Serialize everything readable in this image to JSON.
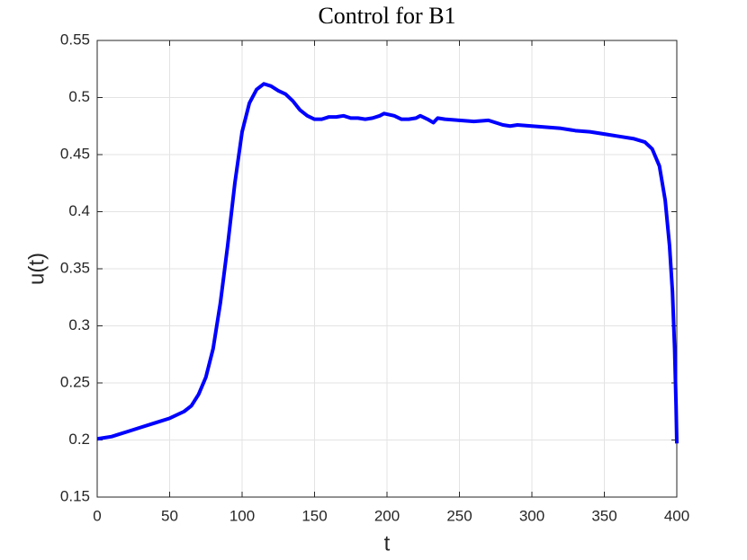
{
  "chart_data": {
    "type": "line",
    "title": "Control for B1",
    "x_label": "t",
    "y_label": "u(t)",
    "x": [
      0,
      10,
      20,
      30,
      40,
      50,
      60,
      65,
      70,
      75,
      80,
      85,
      90,
      95,
      100,
      105,
      110,
      115,
      120,
      125,
      130,
      135,
      140,
      145,
      150,
      155,
      160,
      165,
      170,
      175,
      180,
      185,
      190,
      195,
      198,
      205,
      210,
      215,
      220,
      223,
      228,
      232,
      235,
      240,
      250,
      260,
      270,
      280,
      285,
      290,
      300,
      310,
      320,
      330,
      340,
      350,
      360,
      370,
      378,
      383,
      388,
      392,
      395,
      397,
      398.5,
      399.5,
      400
    ],
    "series": [
      {
        "color": "#0000ff",
        "values": [
          0.201,
          0.203,
          0.207,
          0.211,
          0.215,
          0.219,
          0.225,
          0.23,
          0.24,
          0.255,
          0.28,
          0.32,
          0.37,
          0.425,
          0.47,
          0.495,
          0.507,
          0.512,
          0.51,
          0.506,
          0.503,
          0.497,
          0.489,
          0.484,
          0.481,
          0.481,
          0.483,
          0.483,
          0.484,
          0.482,
          0.482,
          0.481,
          0.482,
          0.484,
          0.486,
          0.484,
          0.481,
          0.481,
          0.482,
          0.484,
          0.481,
          0.478,
          0.482,
          0.481,
          0.48,
          0.479,
          0.48,
          0.476,
          0.475,
          0.476,
          0.475,
          0.474,
          0.473,
          0.471,
          0.47,
          0.468,
          0.466,
          0.464,
          0.461,
          0.455,
          0.44,
          0.41,
          0.37,
          0.33,
          0.28,
          0.23,
          0.197
        ]
      }
    ],
    "xlim": [
      0,
      400
    ],
    "xticks": [
      0,
      50,
      100,
      150,
      200,
      250,
      300,
      350,
      400
    ],
    "ylim": [
      0.15,
      0.55
    ],
    "yticks": [
      0.15,
      0.2,
      0.25,
      0.3,
      0.35,
      0.4,
      0.45,
      0.5,
      0.55
    ],
    "grid": true
  }
}
